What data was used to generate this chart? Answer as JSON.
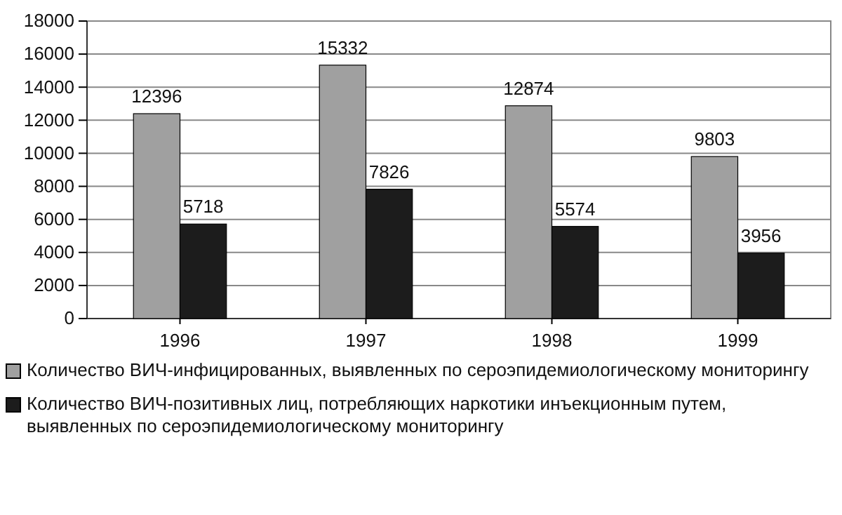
{
  "chart_data": {
    "type": "bar",
    "categories": [
      "1996",
      "1997",
      "1998",
      "1999"
    ],
    "series": [
      {
        "name": "Количество ВИЧ-инфицированных, выявленных по сероэпидемиологическому мониторингу",
        "color": "#a0a0a0",
        "values": [
          12396,
          15332,
          12874,
          9803
        ]
      },
      {
        "name": "Количество ВИЧ-позитивных лиц, потребляющих наркотики инъекционным путем, выявленных по сероэпидемиологическому мониторингу",
        "color": "#1c1c1c",
        "values": [
          5718,
          7826,
          5574,
          3956
        ]
      }
    ],
    "ylim": [
      0,
      18000
    ],
    "yticks": [
      0,
      2000,
      4000,
      6000,
      8000,
      10000,
      12000,
      14000,
      16000,
      18000
    ],
    "grid": "y",
    "legend": "bottom",
    "data_labels": true
  }
}
